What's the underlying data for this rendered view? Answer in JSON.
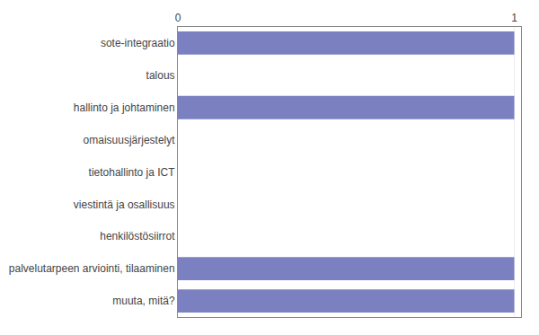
{
  "chart_data": {
    "type": "bar",
    "orientation": "horizontal",
    "categories": [
      "sote-integraatio",
      "talous",
      "hallinto ja johtaminen",
      "omaisuusjärjestelyt",
      "tietohallinto ja ICT",
      "viestintä ja osallisuus",
      "henkilöstösiirrot",
      "palvelutarpeen arviointi, tilaaminen",
      "muuta, mitä?"
    ],
    "values": [
      1,
      0,
      1,
      0,
      0,
      0,
      0,
      1,
      1
    ],
    "color": "#7b80c0",
    "xlim": [
      0,
      1.02
    ],
    "xticks": [
      0,
      1
    ],
    "grid": true
  }
}
